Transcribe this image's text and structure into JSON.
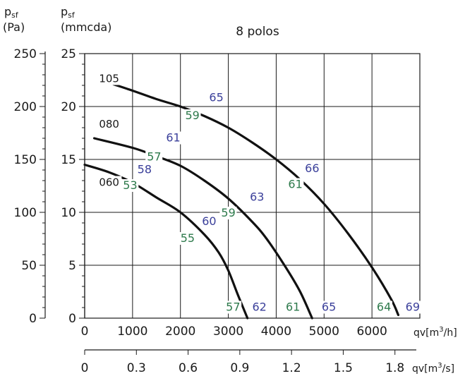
{
  "chart_data": {
    "type": "line",
    "title": "8 polos",
    "y_left_label_outer": {
      "main": "p",
      "sub": "sf",
      "unit": "(Pa)"
    },
    "y_left_label_inner": {
      "main": "p",
      "sub": "sf",
      "unit": "(mmcda)"
    },
    "x_label_top": {
      "prefix": "qv[m",
      "sup": "3",
      "suffix": "/h]"
    },
    "x_label_bottom": {
      "prefix": "qv[m",
      "sup": "3",
      "suffix": "/s]"
    },
    "xlim": [
      0,
      7000
    ],
    "ylim": [
      0,
      25
    ],
    "x_ticks_top": [
      0,
      1000,
      2000,
      3000,
      4000,
      5000,
      6000
    ],
    "x_ticks_top_labels": [
      "0",
      "1000",
      "2000",
      "3000",
      "4000",
      "5000",
      "6000"
    ],
    "x_ticks_bottom_values": [
      0,
      1080,
      2160,
      3240,
      4320,
      5400,
      6480
    ],
    "x_ticks_bottom_labels": [
      "0",
      "0.3",
      "0.6",
      "0.9",
      "1.2",
      "1.5",
      "1.8"
    ],
    "y_ticks_mmcda": [
      0,
      5,
      10,
      15,
      20,
      25
    ],
    "y_ticks_mmcda_labels": [
      "0",
      "5",
      "10",
      "15",
      "20",
      "25"
    ],
    "y_ticks_pa_labels": [
      "0",
      "50",
      "100",
      "150",
      "200",
      "250"
    ],
    "grid": true,
    "series": [
      {
        "name": "060",
        "points": [
          [
            0,
            14.5
          ],
          [
            500,
            13.8
          ],
          [
            1000,
            12.8
          ],
          [
            1500,
            11.4
          ],
          [
            2000,
            10
          ],
          [
            2500,
            7.9
          ],
          [
            2800,
            6.2
          ],
          [
            3000,
            4.5
          ],
          [
            3200,
            2.2
          ],
          [
            3400,
            0
          ]
        ]
      },
      {
        "name": "080",
        "points": [
          [
            200,
            17
          ],
          [
            1000,
            16.1
          ],
          [
            1500,
            15.3
          ],
          [
            2000,
            14.4
          ],
          [
            2500,
            13
          ],
          [
            3000,
            11.3
          ],
          [
            3500,
            9.1
          ],
          [
            3800,
            7.5
          ],
          [
            4200,
            4.8
          ],
          [
            4500,
            2.5
          ],
          [
            4750,
            0
          ]
        ]
      },
      {
        "name": "105",
        "points": [
          [
            600,
            22.1
          ],
          [
            1000,
            21.5
          ],
          [
            1500,
            20.7
          ],
          [
            2000,
            20
          ],
          [
            2500,
            19.1
          ],
          [
            3000,
            18
          ],
          [
            3500,
            16.6
          ],
          [
            4000,
            15
          ],
          [
            4500,
            13.1
          ],
          [
            5000,
            10.8
          ],
          [
            5500,
            8
          ],
          [
            6000,
            4.8
          ],
          [
            6400,
            1.8
          ],
          [
            6550,
            0.3
          ]
        ]
      }
    ],
    "annotations": [
      {
        "text": "105",
        "x": 300,
        "y": 22.3,
        "color": "black"
      },
      {
        "text": "080",
        "x": 300,
        "y": 18,
        "color": "black"
      },
      {
        "text": "060",
        "x": 300,
        "y": 12.5,
        "color": "black"
      },
      {
        "text": "65",
        "x": 2600,
        "y": 20.5,
        "color": "blue"
      },
      {
        "text": "59",
        "x": 2100,
        "y": 18.8,
        "color": "green"
      },
      {
        "text": "61",
        "x": 1700,
        "y": 16.7,
        "color": "blue"
      },
      {
        "text": "57",
        "x": 1300,
        "y": 14.9,
        "color": "green"
      },
      {
        "text": "58",
        "x": 1100,
        "y": 13.7,
        "color": "blue"
      },
      {
        "text": "53",
        "x": 800,
        "y": 12.2,
        "color": "green"
      },
      {
        "text": "66",
        "x": 4600,
        "y": 13.8,
        "color": "blue"
      },
      {
        "text": "61",
        "x": 4250,
        "y": 12.3,
        "color": "green"
      },
      {
        "text": "63",
        "x": 3450,
        "y": 11.1,
        "color": "blue"
      },
      {
        "text": "59",
        "x": 2850,
        "y": 9.6,
        "color": "green"
      },
      {
        "text": "60",
        "x": 2450,
        "y": 8.8,
        "color": "blue"
      },
      {
        "text": "55",
        "x": 2000,
        "y": 7.2,
        "color": "green"
      },
      {
        "text": "57",
        "x": 2950,
        "y": 0.7,
        "color": "green"
      },
      {
        "text": "62",
        "x": 3500,
        "y": 0.7,
        "color": "blue"
      },
      {
        "text": "61",
        "x": 4200,
        "y": 0.7,
        "color": "green"
      },
      {
        "text": "65",
        "x": 4950,
        "y": 0.7,
        "color": "blue"
      },
      {
        "text": "64",
        "x": 6100,
        "y": 0.7,
        "color": "green"
      },
      {
        "text": "69",
        "x": 6700,
        "y": 0.7,
        "color": "blue"
      }
    ],
    "colors": {
      "blue": "#3a3f9a",
      "green": "#2e7a4c",
      "black": "#1a1a1a",
      "curve": "#111111"
    }
  }
}
